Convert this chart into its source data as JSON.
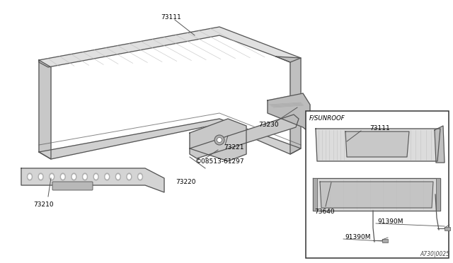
{
  "bg_color": "#ffffff",
  "line_color": "#555555",
  "text_color": "#000000",
  "diagram_id": "A730|0025",
  "parts_labels": {
    "73111_main": "73111",
    "73230": "73230",
    "73221": "73221",
    "08513": "©08513-61297",
    "73220": "73220",
    "73210": "73210",
    "73111_sub": "73111",
    "F_SUNROOF": "F/SUNROOF",
    "73640": "73640",
    "91390M_1": "91390M",
    "91390M_2": "91390M"
  }
}
